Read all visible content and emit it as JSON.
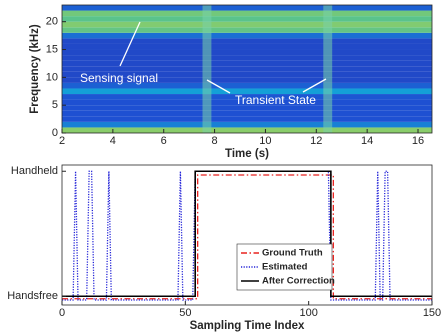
{
  "chart_data": [
    {
      "type": "spectrogram",
      "xlabel": "Time (s)",
      "ylabel": "Frequency (kHz)",
      "xlim": [
        2,
        16.55
      ],
      "ylim": [
        0,
        23
      ],
      "xticks": [
        2,
        4,
        6,
        8,
        10,
        12,
        14,
        16
      ],
      "yticks": [
        0,
        5,
        10,
        15,
        20
      ],
      "y_bins": [
        0,
        1,
        2,
        3,
        4,
        5,
        6,
        7,
        8,
        9,
        10,
        11,
        12,
        13,
        14,
        15,
        16,
        17,
        18,
        19,
        20,
        21,
        22,
        23
      ],
      "intensity": [
        0.8,
        0.35,
        0.2,
        0.2,
        0.2,
        0.2,
        0.22,
        0.45,
        0.25,
        0.15,
        0.15,
        0.15,
        0.15,
        0.15,
        0.15,
        0.15,
        0.15,
        0.3,
        0.72,
        0.78,
        0.7,
        0.75,
        0.25
      ],
      "transients": [
        {
          "time": 7.7,
          "width": 0.35
        },
        {
          "time": 12.45,
          "width": 0.35
        }
      ],
      "annotations": [
        "Sensing signal",
        "Transient State"
      ]
    },
    {
      "type": "line",
      "xlabel": "Sampling Time Index",
      "xlim": [
        0,
        150
      ],
      "ylim": [
        -0.07,
        1.05
      ],
      "xticks": [
        0,
        50,
        100,
        150
      ],
      "yticks": [
        {
          "value": 0,
          "label": "Handsfree"
        },
        {
          "value": 1,
          "label": "Handheld"
        }
      ],
      "legend": "right",
      "series": [
        {
          "name": "Ground Truth",
          "color": "#e8221f",
          "style": "dashdot",
          "x": [
            0,
            55,
            55,
            110,
            110,
            150
          ],
          "values": [
            -0.02,
            -0.02,
            0.97,
            0.97,
            -0.02,
            -0.02
          ]
        },
        {
          "name": "Estimated",
          "color": "#2424d8",
          "style": "dotted",
          "x": [
            0,
            4.5,
            5.5,
            6.5,
            10,
            11,
            12,
            13,
            18,
            19,
            20,
            47,
            48,
            49,
            53,
            54,
            108,
            109,
            127,
            128,
            129,
            130,
            131,
            132,
            133,
            150
          ],
          "values": [
            -0.03,
            -0.03,
            1,
            -0.03,
            -0.03,
            1,
            1,
            -0.03,
            -0.03,
            1,
            -0.03,
            -0.03,
            1,
            -0.03,
            -0.03,
            1,
            1,
            -0.03,
            -0.03,
            1,
            -0.03,
            -0.03,
            1,
            1,
            -0.03,
            -0.03
          ]
        },
        {
          "name": "After Correction",
          "color": "#000000",
          "style": "solid",
          "x": [
            0,
            54,
            54,
            109,
            109,
            150
          ],
          "values": [
            0,
            0,
            1,
            1,
            0,
            0
          ]
        }
      ]
    }
  ]
}
